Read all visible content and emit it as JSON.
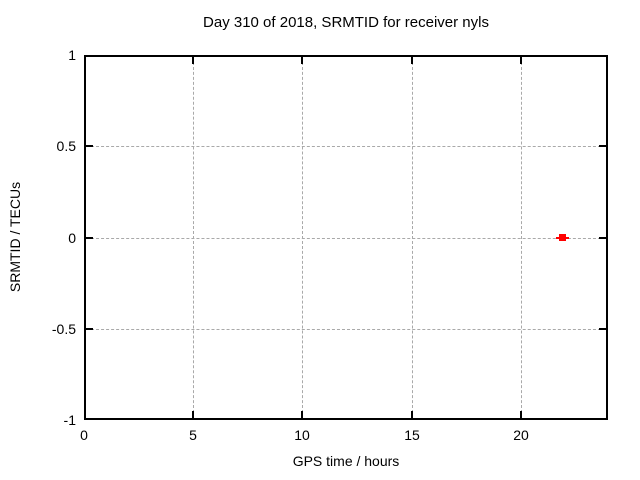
{
  "page": {
    "background": "#ffffff"
  },
  "chart_data": {
    "type": "scatter",
    "title": "Day 310 of 2018, SRMTID for receiver nyls",
    "xlabel": "GPS time / hours",
    "ylabel": "SRMTID / TECUs",
    "xlim": [
      0,
      24
    ],
    "ylim": [
      -1,
      1
    ],
    "grid": true,
    "legend": "none",
    "xticks": [
      {
        "value": 0,
        "label": "0"
      },
      {
        "value": 5,
        "label": "5"
      },
      {
        "value": 10,
        "label": "10"
      },
      {
        "value": 15,
        "label": "15"
      },
      {
        "value": 20,
        "label": "20"
      }
    ],
    "yticks": [
      {
        "value": 1,
        "label": "1"
      },
      {
        "value": 0.5,
        "label": "0.5"
      },
      {
        "value": 0,
        "label": "0"
      },
      {
        "value": -0.5,
        "label": "-0.5"
      },
      {
        "value": -1,
        "label": "-1"
      }
    ],
    "colors": {
      "marker": "#ff0000",
      "grid": "#a9a9a9",
      "axis": "#000000",
      "text": "#000000"
    },
    "series": [
      {
        "name": "SRMTID",
        "marker": "filled-square-with-xerrorbar",
        "color": "#ff0000",
        "points": [
          {
            "x": 21.9,
            "y": 0.0,
            "xerr": 0.3
          }
        ]
      }
    ]
  }
}
